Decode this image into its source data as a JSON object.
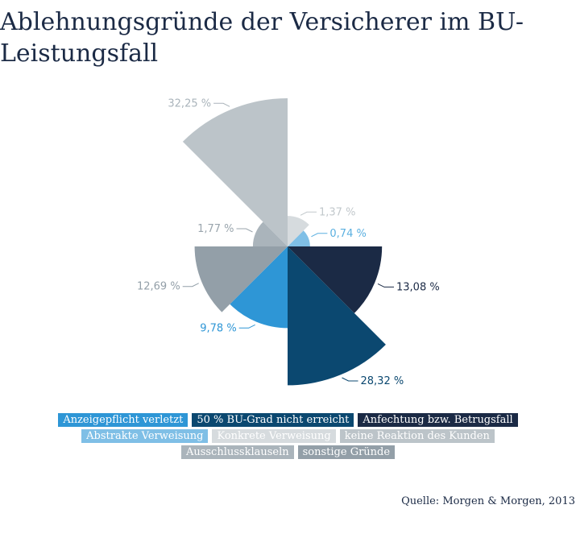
{
  "title": "Ablehnungsgründe der Versicherer im BU-Leistungsfall",
  "source": "Quelle: Morgen & Morgen, 2013",
  "chart_data": {
    "type": "polar-area",
    "title": "Ablehnungsgründe der Versicherer im BU-Leistungsfall",
    "unit": "%",
    "legend_position": "bottom",
    "slices": [
      {
        "name": "Anzeigepflicht verletzt",
        "value": 9.78,
        "label": "9,78 %",
        "color": "#2e96d6"
      },
      {
        "name": "50 % BU-Grad nicht erreicht",
        "value": 28.32,
        "label": "28,32 %",
        "color": "#0b4870"
      },
      {
        "name": "Anfechtung bzw. Betrugsfall",
        "value": 13.08,
        "label": "13,08 %",
        "color": "#1b2a45"
      },
      {
        "name": "Abstrakte Verweisung",
        "value": 0.74,
        "label": "0,74 %",
        "color": "#7fbfe6"
      },
      {
        "name": "Konkrete Verweisung",
        "value": 1.37,
        "label": "1,37 %",
        "color": "#d6dbde"
      },
      {
        "name": "keine Reaktion des Kunden",
        "value": 32.25,
        "label": "32,25 %",
        "color": "#bcc4c9"
      },
      {
        "name": "Ausschlussklauseln",
        "value": 1.77,
        "label": "1,77 %",
        "color": "#aab4bb"
      },
      {
        "name": "sonstige Gründe",
        "value": 12.69,
        "label": "12,69 %",
        "color": "#939fa8"
      }
    ]
  },
  "legend": {
    "rows": [
      [
        0,
        1,
        2
      ],
      [
        3,
        4,
        5
      ],
      [
        6,
        7
      ]
    ]
  }
}
